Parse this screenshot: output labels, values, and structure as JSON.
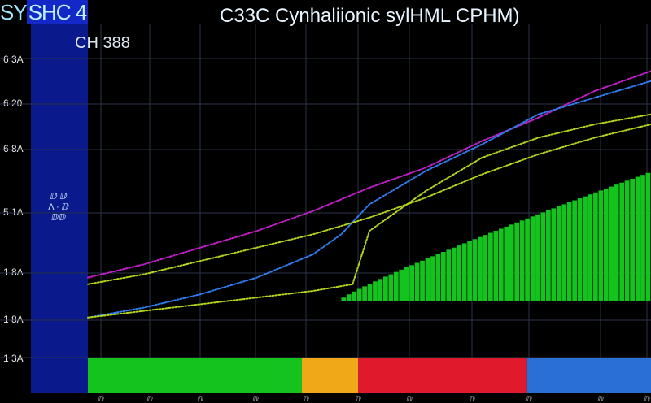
{
  "header": {
    "corner_left": "SY",
    "corner_right": "SHC 4",
    "title": "C33C  Cynhaliionic sylHML CPHM)",
    "subtitle": "CH 388"
  },
  "sidebar": {
    "glyph": "ⅅ ⅅ\nΛ · ⅅ\nⅅⅅ"
  },
  "colors": {
    "background": "#000000",
    "sidebar": "#0a1a8c",
    "magenta": "#c21fc9",
    "blue": "#2f7df0",
    "yellowgreen": "#b4d61e",
    "green_bars": "#14c31e",
    "gridline": "#2a3348"
  },
  "chart_data": {
    "type": "line",
    "title": "C33C  Cynhaliionic sylHML CPHM)",
    "subtitle": "CH 388",
    "yticks": [
      "6 3A",
      "6 20",
      "6 8A",
      "5 1A",
      "1 8A",
      "1 8A",
      "1 3A"
    ],
    "xticks": [
      "ⅅ",
      "ⅅ",
      "ⅅ",
      "ⅅ",
      "ⅅ",
      "ⅅ",
      "ⅅ",
      "ⅅ",
      "ⅅ",
      "ⅅ",
      "ⅅ"
    ],
    "xlim": [
      0,
      100
    ],
    "ylim": [
      0,
      100
    ],
    "grid": true,
    "series": [
      {
        "color": "#c21fc9",
        "style": "dotted",
        "x": [
          0,
          10,
          20,
          30,
          40,
          50,
          60,
          70,
          80,
          90,
          100
        ],
        "y": [
          24,
          28,
          33,
          38,
          44,
          51,
          57,
          65,
          72,
          80,
          86
        ]
      },
      {
        "color": "#2f7df0",
        "style": "dotted",
        "x": [
          0,
          10,
          20,
          30,
          40,
          45,
          50,
          60,
          70,
          80,
          90,
          100
        ],
        "y": [
          12,
          15,
          19,
          24,
          31,
          37,
          46,
          56,
          64,
          73,
          78,
          83
        ]
      },
      {
        "color": "#b4d61e",
        "style": "dotted",
        "x": [
          0,
          10,
          20,
          30,
          40,
          47,
          50,
          60,
          70,
          80,
          90,
          100
        ],
        "y": [
          12,
          14,
          16,
          18,
          20,
          22,
          38,
          50,
          60,
          66,
          70,
          73
        ]
      },
      {
        "color": "#b4d61e",
        "style": "dotted",
        "x": [
          0,
          10,
          20,
          30,
          40,
          50,
          60,
          70,
          80,
          90,
          100
        ],
        "y": [
          22,
          25,
          29,
          33,
          37,
          42,
          48,
          55,
          61,
          66,
          70
        ]
      }
    ],
    "bars": {
      "color": "#14c31e",
      "x_start": 45,
      "x_end": 100,
      "y_start": 18,
      "y_end": 56
    },
    "bottom_band": [
      {
        "from": 0,
        "to": 38,
        "color": "#14c31e"
      },
      {
        "from": 38,
        "to": 48,
        "color": "#f0a818"
      },
      {
        "from": 48,
        "to": 78,
        "color": "#e01a2c"
      },
      {
        "from": 78,
        "to": 100,
        "color": "#2a6fd6"
      }
    ]
  }
}
